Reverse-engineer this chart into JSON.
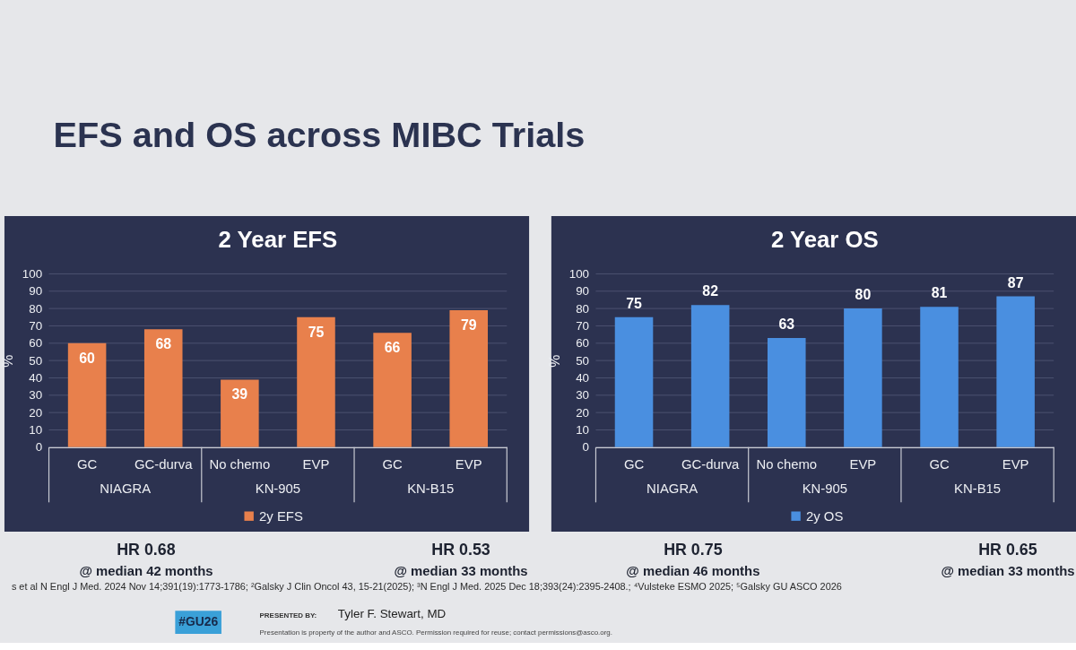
{
  "chart_data": [
    {
      "type": "other",
      "title": "EFS and OS across MIBC Trials",
      "annotations": [
        "s et al N Engl J Med. 2024 Nov 14;391(19):1773-1786; ²Galsky J Clin Oncol 43, 15-21(2025); ³N Engl J Med. 2025 Dec 18;393(24):2395-2408.; ⁴Vulsteke ESMO 2025; ⁵Galsky GU ASCO 2026",
        "#GU26",
        "PRESENTED BY:",
        "Tyler F. Stewart, MD",
        "Presentation is property of the author and ASCO. Permission required for reuse; contact permissions@asco.org."
      ]
    },
    {
      "type": "bar",
      "title": "2 Year EFS",
      "ylabel": "%",
      "categories": [
        "GC",
        "GC-durva",
        "No chemo",
        "EVP",
        "GC",
        "EVP"
      ],
      "series": [
        {
          "name": "2y EFS",
          "color": "#e8804c",
          "values": [
            60,
            68,
            39,
            75,
            66,
            79
          ]
        }
      ],
      "ylim": [
        0,
        100
      ],
      "yticks": [
        0,
        10,
        20,
        30,
        40,
        50,
        60,
        70,
        80,
        90,
        100
      ],
      "grid": "y",
      "legend": "bottom",
      "data_labels": true,
      "annotations": [
        "NIAGRA",
        "KN-905",
        "KN-B15",
        "HR 0.68",
        "@ median 42 months",
        "HR 0.53",
        "@ median 33 months"
      ]
    },
    {
      "type": "bar",
      "title": "2 Year OS",
      "ylabel": "%",
      "categories": [
        "GC",
        "GC-durva",
        "No chemo",
        "EVP",
        "GC",
        "EVP"
      ],
      "series": [
        {
          "name": "2y OS",
          "color": "#4a8fe0",
          "values": [
            75,
            82,
            63,
            80,
            81,
            87
          ]
        }
      ],
      "ylim": [
        0,
        100
      ],
      "yticks": [
        0,
        10,
        20,
        30,
        40,
        50,
        60,
        70,
        80,
        90,
        100
      ],
      "grid": "y",
      "legend": "bottom",
      "data_labels": true,
      "annotations": [
        "NIAGRA",
        "KN-905",
        "KN-B15",
        "HR 0.75",
        "@ median 46 months",
        "HR 0.65",
        "@ median 33 months"
      ]
    }
  ]
}
